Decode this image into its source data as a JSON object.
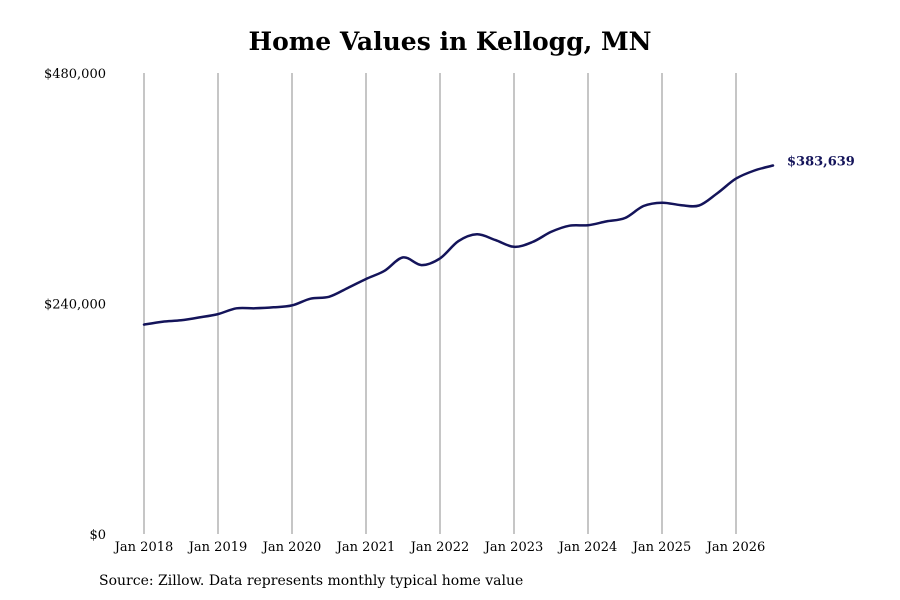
{
  "chart_data": {
    "type": "line",
    "title": "Home Values in Kellogg, MN",
    "xlabel": "",
    "ylabel": "",
    "ylim": [
      0,
      480000
    ],
    "y_ticks": [
      {
        "value": 0,
        "label": "$0"
      },
      {
        "value": 240000,
        "label": "$240,000"
      },
      {
        "value": 480000,
        "label": "$480,000"
      }
    ],
    "x_ticks": [
      "Jan 2018",
      "Jan 2019",
      "Jan 2020",
      "Jan 2021",
      "Jan 2022",
      "Jan 2023",
      "Jan 2024",
      "Jan 2025",
      "Jan 2026"
    ],
    "grid": {
      "vertical": true,
      "horizontal": false
    },
    "line_color": "#14145a",
    "grid_color": "#8c8c8c",
    "last_value_label": "$383,639",
    "series": [
      {
        "x": [
          "2018-01",
          "2018-04",
          "2018-07",
          "2018-10",
          "2019-01",
          "2019-04",
          "2019-07",
          "2019-10",
          "2020-01",
          "2020-04",
          "2020-07",
          "2020-10",
          "2021-01",
          "2021-04",
          "2021-07",
          "2021-10",
          "2022-01",
          "2022-04",
          "2022-07",
          "2022-10",
          "2023-01",
          "2023-04",
          "2023-07",
          "2023-10",
          "2024-01",
          "2024-04",
          "2024-07",
          "2024-10",
          "2025-01",
          "2025-04",
          "2025-07",
          "2025-10",
          "2026-01",
          "2026-04",
          "2026-07"
        ],
        "values": [
          218000,
          221000,
          222500,
          225500,
          229000,
          235000,
          235000,
          236000,
          238000,
          245000,
          247000,
          256000,
          265500,
          274000,
          288000,
          280000,
          287000,
          305000,
          312000,
          306000,
          299000,
          304000,
          314500,
          321000,
          321500,
          325500,
          329000,
          341500,
          345000,
          342500,
          342000,
          355000,
          370000,
          378500,
          383639
        ]
      }
    ]
  },
  "source_note": "Source: Zillow. Data represents monthly typical home value"
}
